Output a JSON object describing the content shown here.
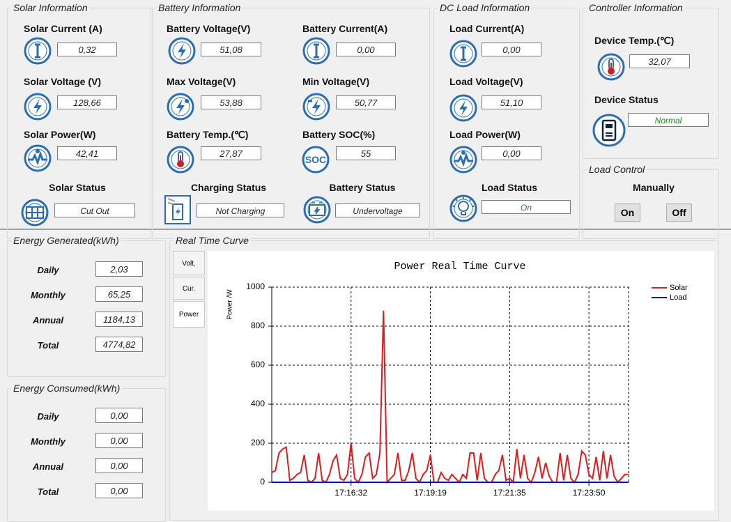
{
  "solar_info": {
    "title": "Solar Information",
    "current_label": "Solar Current (A)",
    "current": "0,32",
    "voltage_label": "Solar Voltage (V)",
    "voltage": "128,66",
    "power_label": "Solar Power(W)",
    "power": "42,41",
    "status_label": "Solar Status",
    "status": "Cut Out"
  },
  "battery_info": {
    "title": "Battery Information",
    "voltage_label": "Battery Voltage(V)",
    "voltage": "51,08",
    "current_label": "Battery Current(A)",
    "current": "0,00",
    "max_voltage_label": "Max Voltage(V)",
    "max_voltage": "53,88",
    "min_voltage_label": "Min Voltage(V)",
    "min_voltage": "50,77",
    "temp_label": "Battery Temp.(℃)",
    "temp": "27,87",
    "soc_label": "Battery SOC(%)",
    "soc": "55",
    "soc_icon": "SOC",
    "charging_status_label": "Charging Status",
    "charging_status": "Not Charging",
    "battery_status_label": "Battery Status",
    "battery_status": "Undervoltage"
  },
  "load_info": {
    "title": "DC Load Information",
    "current_label": "Load Current(A)",
    "current": "0,00",
    "voltage_label": "Load Voltage(V)",
    "voltage": "51,10",
    "power_label": "Load Power(W)",
    "power": "0,00",
    "status_label": "Load Status",
    "status": "On"
  },
  "controller_info": {
    "title": "Controller Information",
    "temp_label": "Device Temp.(℃)",
    "temp": "32,07",
    "status_label": "Device Status",
    "status": "Normal"
  },
  "load_control": {
    "title": "Load Control",
    "mode": "Manually",
    "on_button": "On",
    "off_button": "Off"
  },
  "energy_generated": {
    "title": "Energy Generated(kWh)",
    "rows": [
      {
        "label": "Daily",
        "value": "2,03"
      },
      {
        "label": "Monthly",
        "value": "65,25"
      },
      {
        "label": "Annual",
        "value": "1184,13"
      },
      {
        "label": "Total",
        "value": "4774,82"
      }
    ]
  },
  "energy_consumed": {
    "title": "Energy Consumed(kWh)",
    "rows": [
      {
        "label": "Daily",
        "value": "0,00"
      },
      {
        "label": "Monthly",
        "value": "0,00"
      },
      {
        "label": "Annual",
        "value": "0,00"
      },
      {
        "label": "Total",
        "value": "0,00"
      }
    ]
  },
  "curve_panel": {
    "title": "Real Time Curve",
    "tabs": [
      "Volt.",
      "Cur.",
      "Power"
    ]
  },
  "chart_data": {
    "type": "line",
    "title": "Power Real Time Curve",
    "y_label": "Power /W",
    "categories": [
      null,
      null,
      null,
      null,
      null,
      null,
      null,
      null,
      null,
      null,
      null,
      null,
      null,
      null,
      null,
      null,
      null,
      null,
      null,
      null,
      null,
      null,
      "17:16:32",
      null,
      null,
      null,
      null,
      null,
      null,
      null,
      null,
      null,
      null,
      null,
      null,
      null,
      null,
      null,
      null,
      null,
      null,
      null,
      null,
      null,
      "17:19:19",
      null,
      null,
      null,
      null,
      null,
      null,
      null,
      null,
      null,
      null,
      null,
      null,
      null,
      null,
      null,
      null,
      null,
      null,
      null,
      null,
      null,
      "17:21:35",
      null,
      null,
      null,
      null,
      null,
      null,
      null,
      null,
      null,
      null,
      null,
      null,
      null,
      null,
      null,
      null,
      null,
      null,
      null,
      null,
      null,
      "17:23:50",
      null,
      null,
      null,
      null,
      null,
      null,
      null,
      null,
      null,
      null,
      null
    ],
    "series": [
      {
        "name": "Solar",
        "color": "#e31a1c",
        "values": [
          50,
          60,
          150,
          170,
          180,
          10,
          20,
          40,
          50,
          140,
          10,
          0,
          20,
          150,
          10,
          0,
          40,
          110,
          140,
          20,
          10,
          40,
          200,
          20,
          0,
          40,
          130,
          150,
          20,
          40,
          150,
          880,
          0,
          20,
          40,
          150,
          10,
          10,
          60,
          150,
          20,
          0,
          40,
          60,
          140,
          0,
          0,
          50,
          20,
          10,
          40,
          20,
          0,
          40,
          20,
          150,
          150,
          10,
          150,
          20,
          0,
          0,
          40,
          60,
          140,
          10,
          20,
          0,
          170,
          20,
          140,
          20,
          0,
          50,
          130,
          20,
          100,
          30,
          0,
          0,
          150,
          10,
          140,
          20,
          0,
          40,
          160,
          140,
          40,
          20,
          130,
          10,
          160,
          20,
          140,
          30,
          0,
          20,
          40,
          40
        ]
      },
      {
        "name": "Load",
        "color": "#0000c8",
        "values": [
          0,
          0,
          0,
          0,
          0,
          0,
          0,
          0,
          0,
          0,
          0,
          0,
          0,
          0,
          0,
          0,
          0,
          0,
          0,
          0,
          0,
          0,
          0,
          0,
          0,
          0,
          0,
          0,
          0,
          0,
          0,
          0,
          0,
          0,
          0,
          0,
          0,
          0,
          0,
          0,
          0,
          0,
          0,
          0,
          0,
          0,
          0,
          0,
          0,
          0,
          0,
          0,
          0,
          0,
          0,
          0,
          0,
          0,
          0,
          0,
          0,
          0,
          0,
          0,
          0,
          0,
          0,
          0,
          0,
          0,
          0,
          0,
          0,
          0,
          0,
          0,
          0,
          0,
          0,
          0,
          0,
          0,
          0,
          0,
          0,
          0,
          0,
          0,
          0,
          0,
          0,
          0,
          0,
          0,
          0,
          0,
          0,
          0,
          0,
          0
        ]
      }
    ],
    "ylim": [
      0,
      1000
    ],
    "yticks": [
      0,
      200,
      400,
      600,
      800,
      1000
    ],
    "grid": true,
    "legend": "right"
  }
}
